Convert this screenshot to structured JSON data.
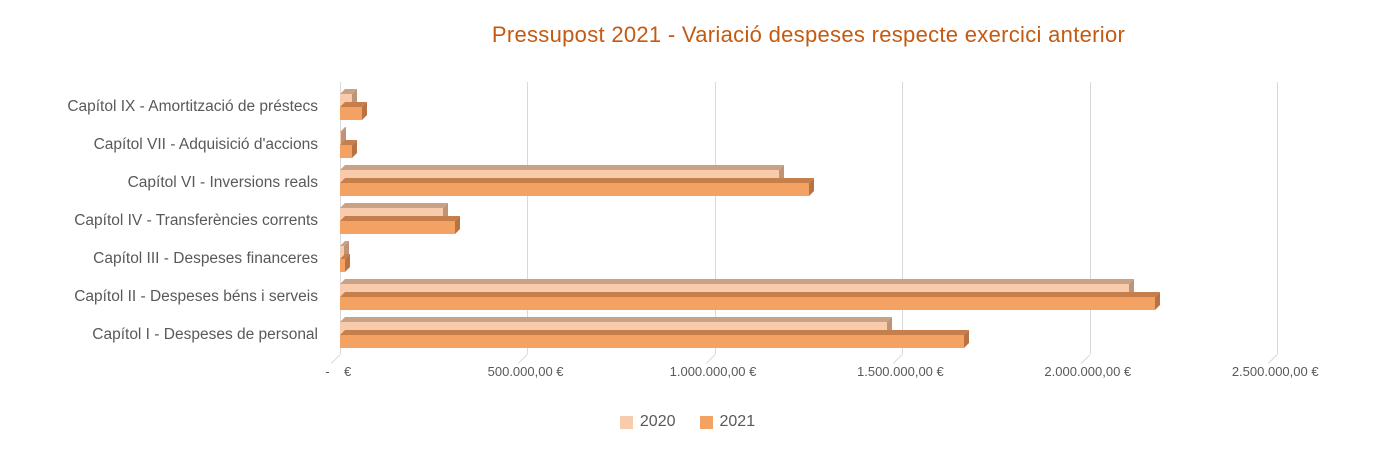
{
  "title": "Pressupost 2021 - Variació despeses respecte exercici anterior",
  "colors": {
    "title": "#C45A11",
    "text": "#595959",
    "gridline": "#D9D9D9"
  },
  "chart_data": {
    "type": "bar",
    "orientation": "horizontal",
    "style": "3d",
    "title": "Pressupost 2021 - Variació despeses respecte exercici anterior",
    "categories": [
      "Capítol IX - Amortització de préstecs",
      "Capítol VII - Adquisició d'accions",
      "Capítol VI - Inversions reals",
      "Capítol IV - Transferències corrents",
      "Capítol III - Despeses financeres",
      "Capítol II - Despeses béns i serveis",
      "Capítol I - Despeses de personal"
    ],
    "series": [
      {
        "name": "2020",
        "color": "#F8CBAD",
        "color_top": "#C9A184",
        "color_side": "#BD9478",
        "values": [
          32000,
          2000,
          1170000,
          275000,
          12000,
          2105000,
          1460000
        ]
      },
      {
        "name": "2021",
        "color": "#F4A263",
        "color_top": "#C67F4B",
        "color_side": "#B97343",
        "values": [
          60000,
          32000,
          1250000,
          307000,
          13000,
          2175000,
          1665000
        ]
      }
    ],
    "xlim": [
      0,
      2500000
    ],
    "x_tick_values": [
      0,
      500000,
      1000000,
      1500000,
      2000000,
      2500000
    ],
    "x_tick_labels": [
      "-    € ",
      "500.000,00 € ",
      "1.000.000,00 € ",
      "1.500.000,00 € ",
      "2.000.000,00 € ",
      "2.500.000,00 € "
    ],
    "grid": "vertical",
    "legend_position": "bottom"
  }
}
